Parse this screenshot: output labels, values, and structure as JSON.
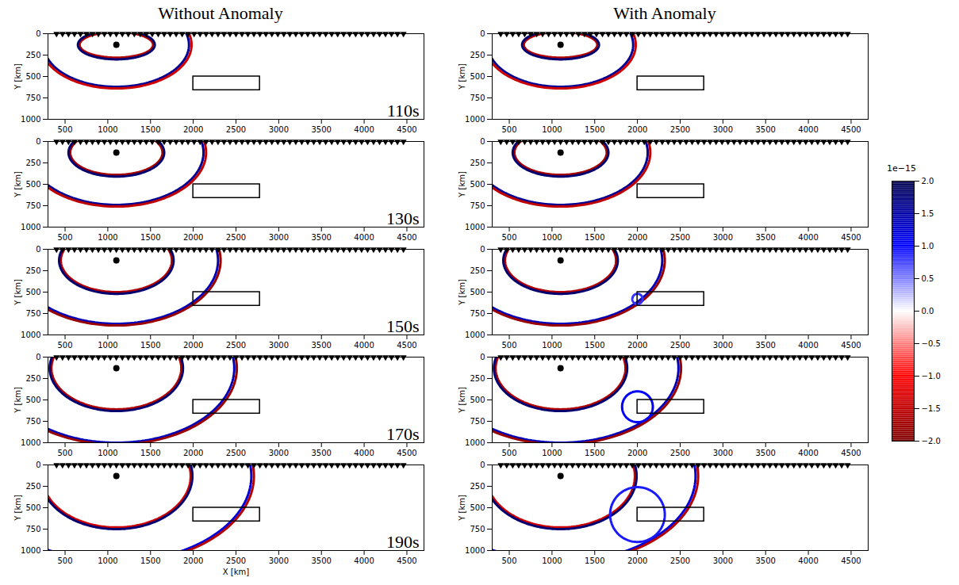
{
  "chart_data": {
    "type": "wavefield_snapshots",
    "columns": [
      "Without Anomaly",
      "With Anomaly"
    ],
    "xlabel": "X [km]",
    "ylabel": "Y [km]",
    "xlim": [
      300,
      4700
    ],
    "xticks": [
      500,
      1000,
      1500,
      2000,
      2500,
      3000,
      3500,
      4000,
      4500
    ],
    "ylim": [
      0,
      1000
    ],
    "yticks": [
      0,
      250,
      500,
      750,
      1000
    ],
    "source": {
      "x": 1100,
      "y": 130
    },
    "receivers": {
      "y": 0,
      "x": [
        400,
        470,
        540,
        610,
        680,
        750,
        820,
        890,
        960,
        1030,
        1100,
        1170,
        1240,
        1310,
        1380,
        1450,
        1520,
        1590,
        1660,
        1730,
        1800,
        1870,
        1940,
        2010,
        2080,
        2150,
        2220,
        2290,
        2360,
        2430,
        2500,
        2570,
        2640,
        2710,
        2780,
        2850,
        2920,
        2990,
        3060,
        3130,
        3200,
        3270,
        3340,
        3410,
        3480,
        3550,
        3620,
        3690,
        3760,
        3830,
        3900,
        3970,
        4040,
        4110,
        4180,
        4250,
        4320,
        4390,
        4460
      ]
    },
    "anomaly_box": {
      "x": [
        2000,
        2780
      ],
      "y": [
        500,
        660
      ]
    },
    "panels": [
      {
        "time": "110s",
        "wavefronts": [
          {
            "rx": 850,
            "ry": 490,
            "amplitude": 1.6
          },
          {
            "rx": 880,
            "ry": 510,
            "amplitude": -1.4
          },
          {
            "rx": 430,
            "ry": 150,
            "amplitude": -1.6
          },
          {
            "rx": 450,
            "ry": 170,
            "amplitude": 1.8
          }
        ],
        "scattered": []
      },
      {
        "time": "130s",
        "wavefronts": [
          {
            "rx": 1020,
            "ry": 610,
            "amplitude": 1.6
          },
          {
            "rx": 1050,
            "ry": 630,
            "amplitude": -1.5
          },
          {
            "rx": 540,
            "ry": 260,
            "amplitude": -1.7
          },
          {
            "rx": 560,
            "ry": 280,
            "amplitude": 1.8
          }
        ],
        "scattered": []
      },
      {
        "time": "150s",
        "wavefronts": [
          {
            "rx": 1190,
            "ry": 740,
            "amplitude": 1.4
          },
          {
            "rx": 1220,
            "ry": 760,
            "amplitude": -1.8
          },
          {
            "rx": 650,
            "ry": 370,
            "amplitude": -1.6
          },
          {
            "rx": 670,
            "ry": 390,
            "amplitude": 1.8
          }
        ],
        "scattered": [
          {
            "cx": 2000,
            "cy": 580,
            "r": 60,
            "amplitude": 0.8
          }
        ]
      },
      {
        "time": "170s",
        "wavefronts": [
          {
            "rx": 1380,
            "ry": 870,
            "amplitude": 1.4
          },
          {
            "rx": 1410,
            "ry": 890,
            "amplitude": -1.8
          },
          {
            "rx": 760,
            "ry": 480,
            "amplitude": -1.6
          },
          {
            "rx": 780,
            "ry": 500,
            "amplitude": 1.8
          }
        ],
        "scattered": [
          {
            "cx": 2000,
            "cy": 580,
            "r": 180,
            "amplitude": 1.0
          }
        ]
      },
      {
        "time": "190s",
        "wavefronts": [
          {
            "rx": 1580,
            "ry": 1000,
            "amplitude": 1.2
          },
          {
            "rx": 1610,
            "ry": 1020,
            "amplitude": -1.6
          },
          {
            "rx": 870,
            "ry": 600,
            "amplitude": -1.4
          },
          {
            "rx": 890,
            "ry": 620,
            "amplitude": 1.8
          }
        ],
        "scattered": [
          {
            "cx": 2000,
            "cy": 580,
            "r": 320,
            "amplitude": 0.9
          }
        ]
      }
    ],
    "colorbar": {
      "lim": [
        -2,
        2
      ],
      "exponent": "1e−15",
      "stops": [
        -2,
        -1,
        0,
        1,
        2
      ],
      "colors": [
        "#800000",
        "#ff0000",
        "#ffffff",
        "#0000ff",
        "#00004d"
      ],
      "ticks": [
        {
          "value": -2,
          "label": "−2.0"
        },
        {
          "value": -1.5,
          "label": "−1.5"
        },
        {
          "value": -1,
          "label": "−1.0"
        },
        {
          "value": -0.5,
          "label": "−0.5"
        },
        {
          "value": 0,
          "label": "0.0"
        },
        {
          "value": 0.5,
          "label": "0.5"
        },
        {
          "value": 1,
          "label": "1.0"
        },
        {
          "value": 1.5,
          "label": "1.5"
        },
        {
          "value": 2,
          "label": "2.0"
        }
      ]
    }
  }
}
